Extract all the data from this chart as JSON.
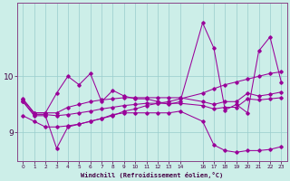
{
  "xlabel": "Windchill (Refroidissement éolien,°C)",
  "bg_color": "#cceee8",
  "line_color": "#990099",
  "grid_color": "#99cccc",
  "x_ticks": [
    0,
    1,
    2,
    3,
    4,
    5,
    6,
    7,
    8,
    9,
    10,
    11,
    12,
    13,
    14,
    16,
    17,
    18,
    19,
    20,
    21,
    22,
    23
  ],
  "y_ticks": [
    9,
    10
  ],
  "ylim": [
    8.5,
    11.3
  ],
  "xlim": [
    -0.5,
    23.5
  ],
  "series": {
    "line_zigzag": {
      "x": [
        0,
        1,
        2,
        3,
        4,
        5,
        6,
        7,
        8,
        9,
        10,
        11,
        12,
        13,
        14,
        16,
        17,
        18,
        19,
        20,
        21,
        22,
        23
      ],
      "y": [
        9.6,
        9.35,
        9.35,
        9.7,
        10.0,
        9.85,
        10.05,
        9.55,
        9.75,
        9.65,
        9.6,
        9.6,
        9.55,
        9.5,
        9.55,
        10.95,
        10.5,
        9.4,
        9.5,
        9.35,
        10.45,
        10.7,
        9.9
      ]
    },
    "line_flat1": {
      "x": [
        0,
        1,
        2,
        3,
        4,
        5,
        6,
        7,
        8,
        9,
        10,
        11,
        12,
        13,
        14,
        16,
        17,
        18,
        19,
        20,
        21,
        22,
        23
      ],
      "y": [
        9.58,
        9.35,
        9.35,
        9.35,
        9.45,
        9.5,
        9.55,
        9.58,
        9.6,
        9.62,
        9.62,
        9.62,
        9.62,
        9.62,
        9.62,
        9.55,
        9.5,
        9.55,
        9.55,
        9.7,
        9.65,
        9.68,
        9.72
      ]
    },
    "line_flat2": {
      "x": [
        0,
        1,
        2,
        3,
        4,
        5,
        6,
        7,
        8,
        9,
        10,
        11,
        12,
        13,
        14,
        16,
        17,
        18,
        19,
        20,
        21,
        22,
        23
      ],
      "y": [
        9.55,
        9.32,
        9.32,
        9.3,
        9.32,
        9.35,
        9.38,
        9.42,
        9.45,
        9.48,
        9.5,
        9.52,
        9.52,
        9.52,
        9.52,
        9.48,
        9.42,
        9.45,
        9.45,
        9.6,
        9.58,
        9.6,
        9.62
      ]
    },
    "line_descent": {
      "x": [
        0,
        1,
        2,
        3,
        4,
        5,
        6,
        7,
        8,
        9,
        10,
        11,
        12,
        13,
        14,
        16,
        17,
        18,
        19,
        20,
        21,
        22,
        23
      ],
      "y": [
        9.55,
        9.3,
        9.3,
        8.72,
        9.1,
        9.15,
        9.2,
        9.25,
        9.32,
        9.35,
        9.35,
        9.35,
        9.35,
        9.35,
        9.38,
        9.2,
        8.78,
        8.68,
        8.65,
        8.68,
        8.68,
        8.7,
        8.75
      ]
    },
    "line_rise": {
      "x": [
        0,
        1,
        2,
        3,
        4,
        5,
        6,
        7,
        8,
        9,
        10,
        11,
        12,
        13,
        14,
        16,
        17,
        18,
        19,
        20,
        21,
        22,
        23
      ],
      "y": [
        9.3,
        9.2,
        9.1,
        9.1,
        9.12,
        9.15,
        9.2,
        9.25,
        9.3,
        9.38,
        9.42,
        9.48,
        9.52,
        9.55,
        9.6,
        9.7,
        9.78,
        9.85,
        9.9,
        9.95,
        10.0,
        10.05,
        10.08
      ]
    }
  }
}
